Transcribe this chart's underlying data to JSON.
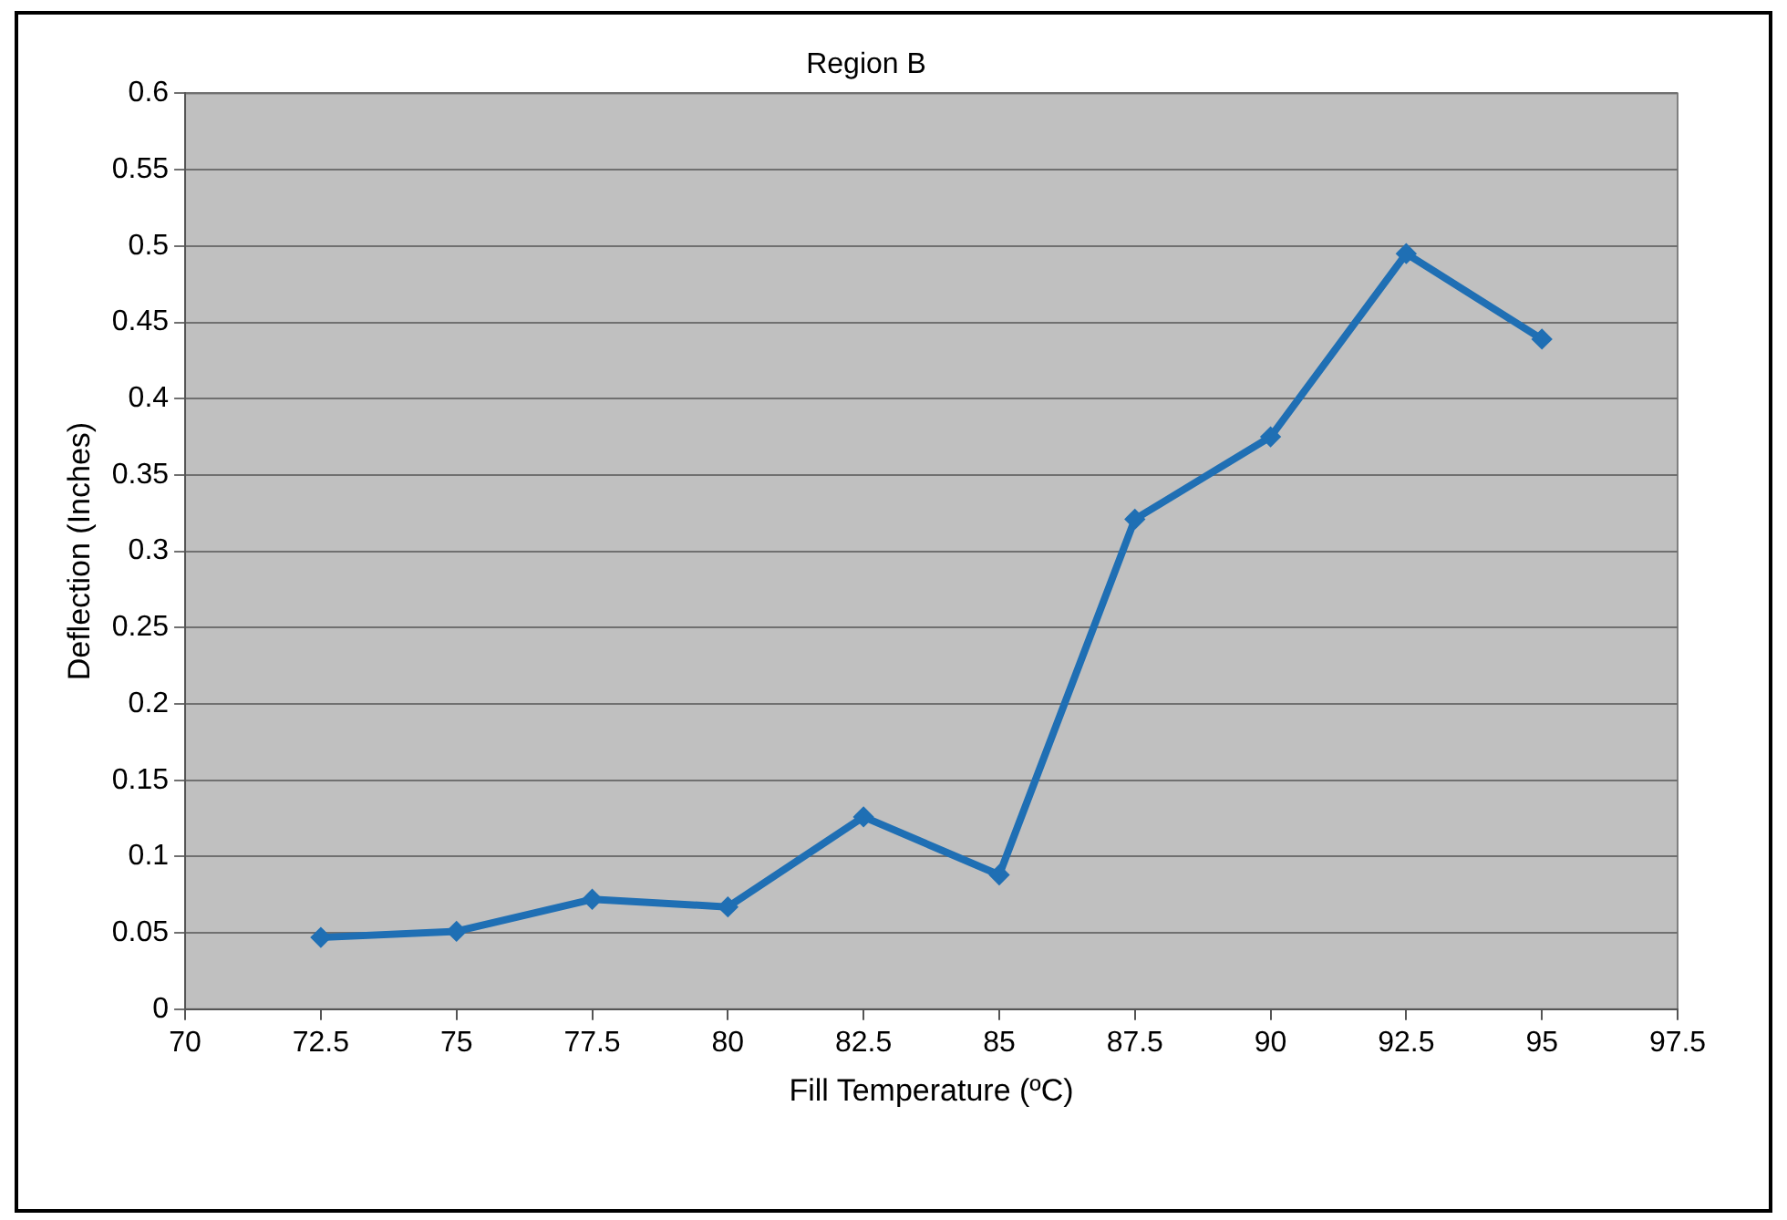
{
  "chart_data": {
    "type": "line",
    "title": "Region B",
    "xlabel": "Fill Temperature (ºC)",
    "ylabel": "Deflection (Inches)",
    "x": [
      72.5,
      75,
      77.5,
      80,
      82.5,
      85,
      87.5,
      90,
      92.5,
      95
    ],
    "series": [
      {
        "color": "#1f6fb4",
        "values": [
          0.047,
          0.051,
          0.072,
          0.067,
          0.126,
          0.088,
          0.321,
          0.375,
          0.495,
          0.439
        ]
      }
    ],
    "xlim": [
      70,
      97.5
    ],
    "xticks": [
      70,
      72.5,
      75,
      77.5,
      80,
      82.5,
      85,
      87.5,
      90,
      92.5,
      95,
      97.5
    ],
    "ylim": [
      0,
      0.6
    ],
    "yticks": [
      0,
      0.05,
      0.1,
      0.15,
      0.2,
      0.25,
      0.3,
      0.35,
      0.4,
      0.45,
      0.5,
      0.55,
      0.6
    ],
    "grid": "y",
    "legend": false,
    "marker": "diamond",
    "line_style": "solid"
  }
}
